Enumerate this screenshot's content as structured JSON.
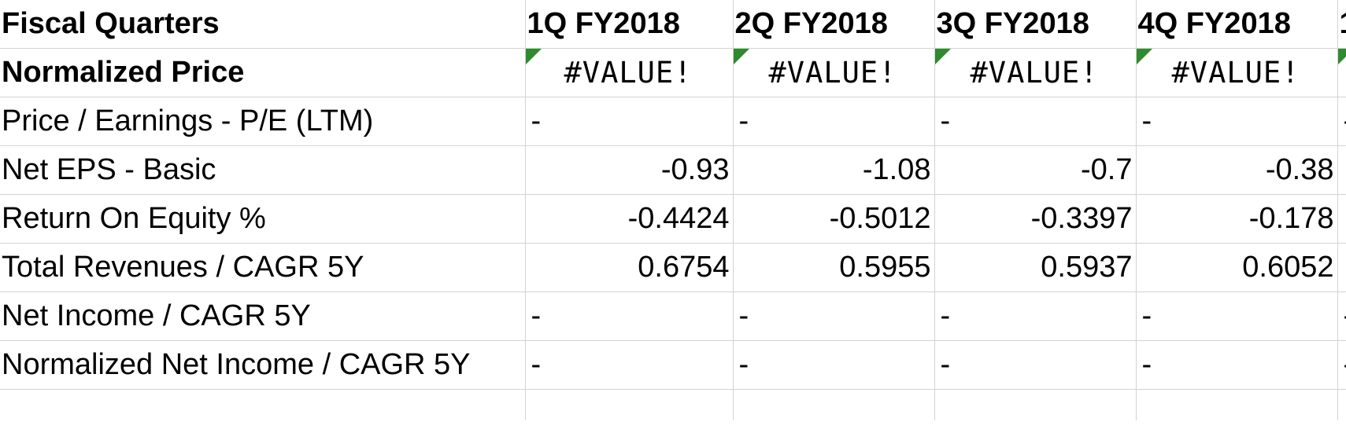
{
  "sheet": {
    "header": {
      "label": "Fiscal Quarters",
      "quarters": [
        "1Q FY2018",
        "2Q FY2018",
        "3Q FY2018",
        "4Q FY2018",
        "1"
      ]
    },
    "rows": [
      {
        "label": "Normalized Price",
        "values": [
          "#VALUE!",
          "#VALUE!",
          "#VALUE!",
          "#VALUE!",
          ""
        ]
      },
      {
        "label": "Price / Earnings - P/E (LTM)",
        "values": [
          "-",
          "-",
          "-",
          "-",
          "-"
        ]
      },
      {
        "label": "Net EPS - Basic",
        "values": [
          "-0.93",
          "-1.08",
          "-0.7",
          "-0.38",
          ""
        ]
      },
      {
        "label": "Return On Equity %",
        "values": [
          "-0.4424",
          "-0.5012",
          "-0.3397",
          "-0.178",
          ""
        ]
      },
      {
        "label": "Total Revenues / CAGR 5Y",
        "values": [
          "0.6754",
          "0.5955",
          "0.5937",
          "0.6052",
          ""
        ]
      },
      {
        "label": "Net Income / CAGR 5Y",
        "values": [
          "-",
          "-",
          "-",
          "-",
          "-"
        ]
      },
      {
        "label": "Normalized Net Income / CAGR 5Y",
        "values": [
          "-",
          "-",
          "-",
          "-",
          "-"
        ]
      }
    ],
    "error_flag_color": "#2e8b2e",
    "grid_color": "#d3d3d3"
  }
}
